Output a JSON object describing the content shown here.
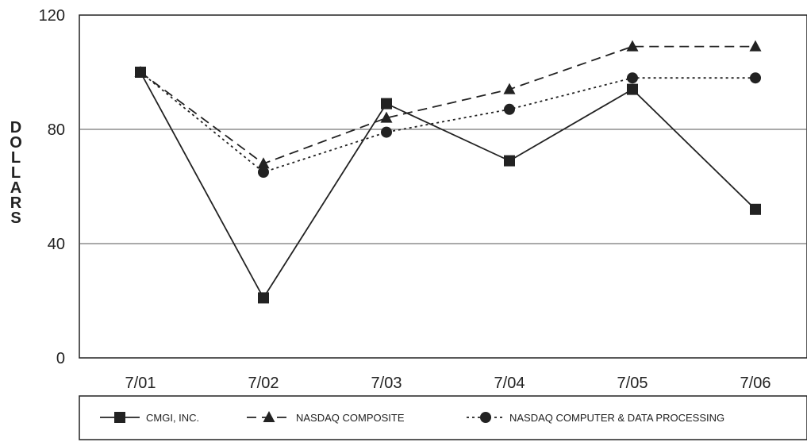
{
  "chart_data": {
    "type": "line",
    "xlabel": "",
    "ylabel": "DOLLARS",
    "categories": [
      "7/01",
      "7/02",
      "7/03",
      "7/04",
      "7/05",
      "7/06"
    ],
    "ylim": [
      0,
      120
    ],
    "yticks": [
      0,
      40,
      80,
      120
    ],
    "grid": "horizontal at 40 and 80",
    "legend_position": "bottom",
    "series": [
      {
        "name": "CMGI, INC.",
        "marker": "square",
        "line": "solid",
        "values": [
          100,
          21,
          89,
          69,
          94,
          52
        ]
      },
      {
        "name": "NASDAQ COMPOSITE",
        "marker": "triangle",
        "line": "dashed",
        "values": [
          100,
          68,
          84,
          94,
          109,
          109
        ]
      },
      {
        "name": "NASDAQ COMPUTER & DATA PROCESSING",
        "marker": "circle",
        "line": "dotted",
        "values": [
          100,
          65,
          79,
          87,
          98,
          98
        ]
      }
    ]
  }
}
